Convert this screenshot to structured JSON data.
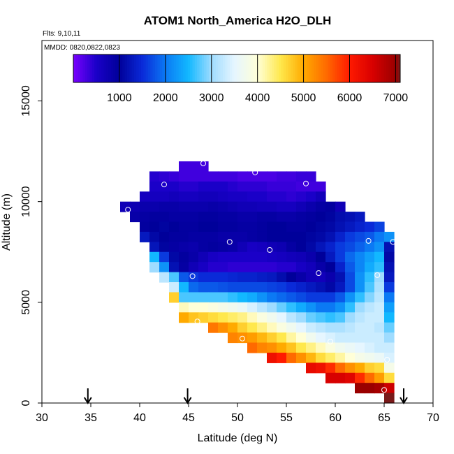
{
  "chart_data": {
    "type": "heatmap",
    "title": "ATOM1 North_America H2O_DLH",
    "flights_label": "Flts: 9,10,11",
    "mmdd_label": "MMDD: 0820,0822,0823",
    "xlabel": "Latitude (deg N)",
    "ylabel": "Altitude (m)",
    "xlim": [
      30,
      70
    ],
    "ylim": [
      0,
      18000
    ],
    "xticks": [
      30,
      35,
      40,
      45,
      50,
      55,
      60,
      65,
      70
    ],
    "yticks": [
      0,
      5000,
      10000,
      15000
    ],
    "colorbar": {
      "range": [
        0,
        7100
      ],
      "ticks": [
        1000,
        2000,
        3000,
        4000,
        5000,
        6000,
        7000
      ],
      "stops": [
        {
          "v": 0,
          "c": "#7a00ff"
        },
        {
          "v": 500,
          "c": "#1a00c8"
        },
        {
          "v": 1000,
          "c": "#00009a"
        },
        {
          "v": 1500,
          "c": "#0a2ad8"
        },
        {
          "v": 2000,
          "c": "#0b79f4"
        },
        {
          "v": 2500,
          "c": "#12b8ff"
        },
        {
          "v": 3000,
          "c": "#9fdcff"
        },
        {
          "v": 3500,
          "c": "#e6f6ff"
        },
        {
          "v": 4000,
          "c": "#ffffd8"
        },
        {
          "v": 4500,
          "c": "#ffe84c"
        },
        {
          "v": 5000,
          "c": "#ffaa00"
        },
        {
          "v": 5500,
          "c": "#ff6a00"
        },
        {
          "v": 6000,
          "c": "#ff1a00"
        },
        {
          "v": 6500,
          "c": "#d80000"
        },
        {
          "v": 7000,
          "c": "#9a0000"
        },
        {
          "v": 7100,
          "c": "#7a1a1a"
        }
      ]
    },
    "grid_cell": {
      "dlat": 1,
      "dalt": 500
    },
    "grid": [
      {
        "alt": 11750,
        "lats": [
          44.5,
          45.5,
          46.5
        ],
        "values": [
          300,
          300,
          300
        ]
      },
      {
        "alt": 11250,
        "lats": [
          41.5,
          42.5,
          43.5,
          44.5,
          45.5,
          46.5,
          47.5,
          48.5,
          49.5,
          50.5,
          51.5,
          52.5,
          53.5,
          54.5,
          55.5,
          56.5,
          57.5
        ],
        "values": [
          450,
          400,
          350,
          300,
          300,
          300,
          300,
          300,
          300,
          250,
          250,
          250,
          250,
          300,
          300,
          350,
          350
        ]
      },
      {
        "alt": 10750,
        "lats": [
          41.5,
          42.5,
          43.5,
          44.5,
          45.5,
          46.5,
          47.5,
          48.5,
          49.5,
          50.5,
          51.5,
          52.5,
          53.5,
          54.5,
          55.5,
          56.5,
          57.5,
          58.5
        ],
        "values": [
          500,
          500,
          500,
          450,
          450,
          500,
          500,
          500,
          450,
          400,
          400,
          400,
          350,
          350,
          350,
          300,
          300,
          300
        ]
      },
      {
        "alt": 10250,
        "lats": [
          40.5,
          41.5,
          42.5,
          43.5,
          44.5,
          45.5,
          46.5,
          47.5,
          48.5,
          49.5,
          50.5,
          51.5,
          52.5,
          53.5,
          54.5,
          55.5,
          56.5,
          57.5,
          58.5
        ],
        "values": [
          600,
          600,
          600,
          650,
          600,
          600,
          650,
          650,
          600,
          550,
          550,
          500,
          500,
          450,
          450,
          400,
          450,
          500,
          650
        ]
      },
      {
        "alt": 9750,
        "lats": [
          38.5,
          39.5,
          40.5,
          41.5,
          42.5,
          43.5,
          44.5,
          45.5,
          46.5,
          47.5,
          48.5,
          49.5,
          50.5,
          51.5,
          52.5,
          53.5,
          54.5,
          55.5,
          56.5,
          57.5,
          58.5,
          59.5,
          60.5
        ],
        "values": [
          700,
          750,
          800,
          800,
          850,
          850,
          800,
          800,
          800,
          850,
          800,
          750,
          700,
          700,
          650,
          650,
          600,
          600,
          700,
          800,
          900,
          950,
          700
        ]
      },
      {
        "alt": 9250,
        "lats": [
          39.5,
          40.5,
          41.5,
          42.5,
          43.5,
          44.5,
          45.5,
          46.5,
          47.5,
          48.5,
          49.5,
          50.5,
          51.5,
          52.5,
          53.5,
          54.5,
          55.5,
          56.5,
          57.5,
          58.5,
          59.5,
          60.5,
          61.5,
          62.5
        ],
        "values": [
          850,
          900,
          950,
          950,
          900,
          900,
          900,
          950,
          950,
          900,
          900,
          850,
          850,
          900,
          900,
          850,
          850,
          900,
          950,
          1000,
          1050,
          1150,
          1200,
          1300
        ]
      },
      {
        "alt": 8750,
        "lats": [
          40.5,
          41.5,
          42.5,
          43.5,
          44.5,
          45.5,
          46.5,
          47.5,
          48.5,
          49.5,
          50.5,
          51.5,
          52.5,
          53.5,
          54.5,
          55.5,
          56.5,
          57.5,
          58.5,
          59.5,
          60.5,
          61.5,
          62.5,
          63.5,
          64.5
        ],
        "values": [
          950,
          1000,
          1050,
          1000,
          950,
          950,
          1000,
          1000,
          950,
          950,
          900,
          900,
          950,
          1000,
          1000,
          950,
          950,
          1000,
          1050,
          1100,
          1200,
          1300,
          1400,
          1500,
          1650
        ]
      },
      {
        "alt": 8250,
        "lats": [
          40.5,
          41.5,
          42.5,
          43.5,
          44.5,
          45.5,
          46.5,
          47.5,
          48.5,
          49.5,
          50.5,
          51.5,
          52.5,
          53.5,
          54.5,
          55.5,
          56.5,
          57.5,
          58.5,
          59.5,
          60.5,
          61.5,
          62.5,
          63.5,
          64.5,
          65.5
        ],
        "values": [
          1300,
          1100,
          1000,
          950,
          950,
          900,
          900,
          900,
          850,
          850,
          850,
          900,
          950,
          1000,
          1000,
          1000,
          1000,
          1050,
          1100,
          1200,
          1400,
          1600,
          1700,
          1800,
          2000,
          2200
        ]
      },
      {
        "alt": 7750,
        "lats": [
          41.5,
          42.5,
          43.5,
          44.5,
          45.5,
          46.5,
          47.5,
          48.5,
          49.5,
          50.5,
          51.5,
          52.5,
          53.5,
          54.5,
          55.5,
          56.5,
          57.5,
          58.5,
          59.5,
          60.5,
          61.5,
          62.5,
          63.5,
          64.5,
          65.5
        ],
        "values": [
          1250,
          1050,
          900,
          850,
          800,
          900,
          950,
          900,
          850,
          700,
          550,
          600,
          700,
          750,
          900,
          1000,
          1100,
          1250,
          1400,
          1600,
          1700,
          1850,
          2000,
          2200,
          1200
        ]
      },
      {
        "alt": 7250,
        "lats": [
          41.5,
          42.5,
          43.5,
          44.5,
          45.5,
          46.5,
          47.5,
          48.5,
          49.5,
          50.5,
          51.5,
          52.5,
          53.5,
          54.5,
          55.5,
          56.5,
          57.5,
          58.5,
          59.5,
          60.5,
          61.5,
          62.5,
          63.5,
          64.5,
          65.5
        ],
        "values": [
          2500,
          1600,
          1100,
          950,
          850,
          700,
          550,
          500,
          500,
          500,
          500,
          500,
          550,
          600,
          650,
          700,
          800,
          1000,
          1300,
          1600,
          1900,
          2100,
          2300,
          2500,
          1100
        ]
      },
      {
        "alt": 6750,
        "lats": [
          41.5,
          42.5,
          43.5,
          44.5,
          45.5,
          46.5,
          47.5,
          48.5,
          49.5,
          50.5,
          51.5,
          52.5,
          53.5,
          54.5,
          55.5,
          56.5,
          57.5,
          58.5,
          59.5,
          60.5,
          61.5,
          62.5,
          63.5,
          64.5,
          65.5
        ],
        "values": [
          3000,
          2200,
          1200,
          900,
          700,
          550,
          450,
          450,
          400,
          400,
          400,
          400,
          400,
          450,
          450,
          550,
          650,
          850,
          1000,
          1400,
          1800,
          2100,
          2400,
          2600,
          1200
        ]
      },
      {
        "alt": 6250,
        "lats": [
          42.5,
          43.5,
          44.5,
          45.5,
          46.5,
          47.5,
          48.5,
          49.5,
          50.5,
          51.5,
          52.5,
          53.5,
          54.5,
          55.5,
          56.5,
          57.5,
          58.5,
          59.5,
          60.5,
          61.5,
          62.5,
          63.5,
          64.5,
          65.5
        ],
        "values": [
          3200,
          2700,
          1800,
          1600,
          1500,
          1500,
          1500,
          1450,
          1400,
          1400,
          1350,
          1300,
          1150,
          1000,
          850,
          700,
          650,
          800,
          1200,
          1700,
          2200,
          2600,
          3000,
          1300
        ]
      },
      {
        "alt": 5750,
        "lats": [
          43.5,
          44.5,
          45.5,
          46.5,
          47.5,
          48.5,
          49.5,
          50.5,
          51.5,
          52.5,
          53.5,
          54.5,
          55.5,
          56.5,
          57.5,
          58.5,
          59.5,
          60.5,
          61.5,
          62.5,
          63.5,
          64.5,
          65.5
        ],
        "values": [
          3300,
          2500,
          1900,
          1800,
          1800,
          1750,
          1700,
          1700,
          1700,
          1700,
          1650,
          1600,
          1500,
          1400,
          1300,
          1200,
          1100,
          1300,
          1700,
          2200,
          2700,
          3100,
          1600
        ]
      },
      {
        "alt": 5250,
        "lats": [
          43.5,
          44.5,
          45.5,
          46.5,
          47.5,
          48.5,
          49.5,
          50.5,
          51.5,
          52.5,
          53.5,
          54.5,
          55.5,
          56.5,
          57.5,
          58.5,
          59.5,
          60.5,
          61.5,
          62.5,
          63.5,
          64.5,
          65.5
        ],
        "values": [
          4700,
          2700,
          2700,
          2700,
          2700,
          2700,
          2600,
          2500,
          2400,
          2200,
          2000,
          1900,
          1800,
          1700,
          1600,
          1600,
          1600,
          1800,
          2200,
          2600,
          2900,
          3200,
          2000
        ]
      },
      {
        "alt": 4750,
        "lats": [
          44.5,
          45.5,
          46.5,
          47.5,
          48.5,
          49.5,
          50.5,
          51.5,
          52.5,
          53.5,
          54.5,
          55.5,
          56.5,
          57.5,
          58.5,
          59.5,
          60.5,
          61.5,
          62.5,
          63.5,
          64.5,
          65.5
        ],
        "values": [
          4100,
          4000,
          4000,
          3900,
          3800,
          3700,
          3600,
          3400,
          3200,
          3000,
          2800,
          2600,
          2400,
          2200,
          2000,
          2000,
          2200,
          2600,
          3000,
          3200,
          3300,
          2300
        ]
      },
      {
        "alt": 4250,
        "lats": [
          44.5,
          45.5,
          46.5,
          47.5,
          48.5,
          49.5,
          50.5,
          51.5,
          52.5,
          53.5,
          54.5,
          55.5,
          56.5,
          57.5,
          58.5,
          59.5,
          60.5,
          61.5,
          62.5,
          63.5,
          64.5,
          65.5
        ],
        "values": [
          5000,
          4800,
          4700,
          4600,
          4500,
          4400,
          4300,
          4100,
          3900,
          3700,
          3500,
          3200,
          3000,
          2800,
          2700,
          2600,
          2700,
          3000,
          3200,
          3300,
          3300,
          2500
        ]
      },
      {
        "alt": 3750,
        "lats": [
          47.5,
          48.5,
          49.5,
          50.5,
          51.5,
          52.5,
          53.5,
          54.5,
          55.5,
          56.5,
          57.5,
          58.5,
          59.5,
          60.5,
          61.5,
          62.5,
          63.5,
          64.5,
          65.5
        ],
        "values": [
          5400,
          5200,
          5000,
          4700,
          4500,
          4300,
          4100,
          3900,
          3700,
          3500,
          3300,
          3200,
          3100,
          3100,
          3200,
          3300,
          3300,
          3200,
          2800
        ]
      },
      {
        "alt": 3250,
        "lats": [
          49.5,
          50.5,
          51.5,
          52.5,
          53.5,
          54.5,
          55.5,
          56.5,
          57.5,
          58.5,
          59.5,
          60.5,
          61.5,
          62.5,
          63.5,
          64.5,
          65.5
        ],
        "values": [
          5300,
          5200,
          5100,
          4900,
          4700,
          4500,
          4200,
          4000,
          3700,
          3500,
          3400,
          3300,
          3300,
          3300,
          3300,
          3300,
          3000
        ]
      },
      {
        "alt": 2750,
        "lats": [
          51.5,
          52.5,
          53.5,
          54.5,
          55.5,
          56.5,
          57.5,
          58.5,
          59.5,
          60.5,
          61.5,
          62.5,
          63.5,
          64.5,
          65.5
        ],
        "values": [
          5500,
          5300,
          5200,
          5000,
          4800,
          4500,
          4300,
          4100,
          3900,
          3700,
          3600,
          3500,
          3400,
          3300,
          3300
        ]
      },
      {
        "alt": 2250,
        "lats": [
          53.5,
          54.5,
          55.5,
          56.5,
          57.5,
          58.5,
          59.5,
          60.5,
          61.5,
          62.5,
          63.5,
          64.5,
          65.5
        ],
        "values": [
          6200,
          6000,
          5500,
          5200,
          4900,
          4600,
          4400,
          4200,
          4000,
          3800,
          3700,
          3600,
          3400
        ]
      },
      {
        "alt": 1750,
        "lats": [
          57.5,
          58.5,
          59.5,
          60.5,
          61.5,
          62.5,
          63.5,
          64.5,
          65.5
        ],
        "values": [
          6300,
          6200,
          5900,
          5500,
          5200,
          5000,
          4700,
          4600,
          3800
        ]
      },
      {
        "alt": 1250,
        "lats": [
          59.5,
          60.5,
          61.5,
          62.5,
          63.5,
          64.5,
          65.5
        ],
        "values": [
          6500,
          6500,
          6400,
          5900,
          5500,
          5100,
          4600
        ]
      },
      {
        "alt": 750,
        "lats": [
          62.5,
          63.5,
          64.5,
          65.5
        ],
        "values": [
          7000,
          7000,
          6900,
          6600
        ]
      },
      {
        "alt": 250,
        "lats": [
          65.5
        ],
        "values": [
          7100
        ]
      }
    ],
    "markers": [
      {
        "lat": 46.5,
        "alt": 11900
      },
      {
        "lat": 51.8,
        "alt": 11450
      },
      {
        "lat": 57.0,
        "alt": 10900
      },
      {
        "lat": 42.5,
        "alt": 10850
      },
      {
        "lat": 38.8,
        "alt": 9600
      },
      {
        "lat": 49.2,
        "alt": 8000
      },
      {
        "lat": 53.3,
        "alt": 7600
      },
      {
        "lat": 63.4,
        "alt": 8050
      },
      {
        "lat": 65.9,
        "alt": 8000
      },
      {
        "lat": 45.4,
        "alt": 6300
      },
      {
        "lat": 58.3,
        "alt": 6450
      },
      {
        "lat": 64.3,
        "alt": 6350
      },
      {
        "lat": 45.9,
        "alt": 4050
      },
      {
        "lat": 50.5,
        "alt": 3200
      },
      {
        "lat": 59.5,
        "alt": 3050
      },
      {
        "lat": 65.3,
        "alt": 2150
      },
      {
        "lat": 65.0,
        "alt": 650
      }
    ],
    "arrows_lat": [
      34.7,
      44.9,
      67.0
    ]
  }
}
